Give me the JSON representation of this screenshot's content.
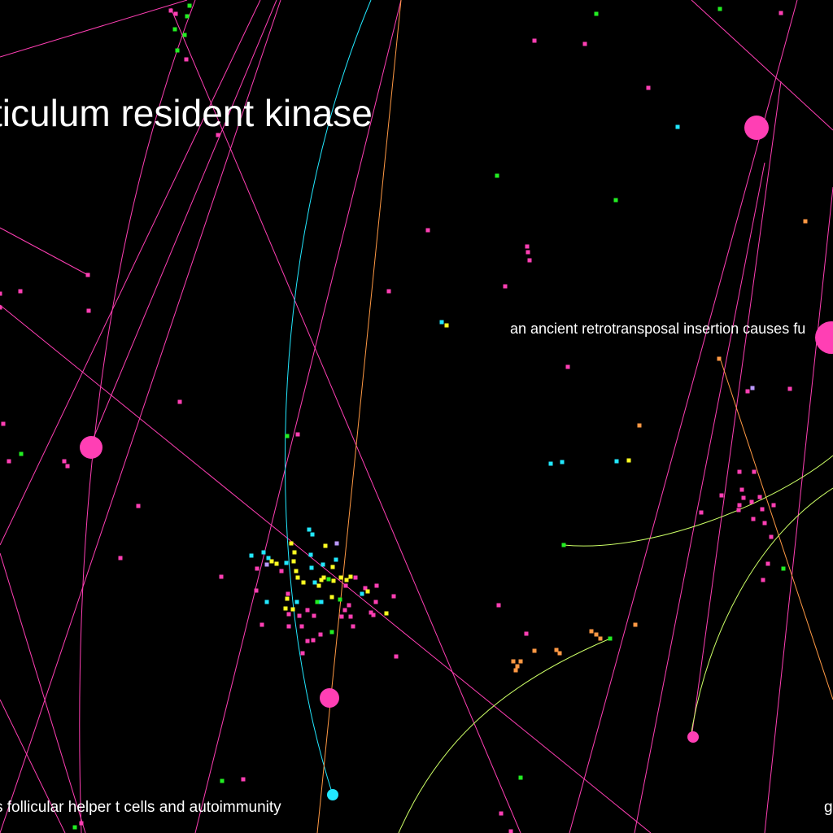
{
  "labels": {
    "title_fragment": "ticulum resident kinase",
    "mid_label": "an ancient retrotransposal insertion causes fu",
    "bottom_label": "s follicular helper t cells and autoimmunity",
    "corner_fragment": "g"
  },
  "colors": {
    "background": "#000000",
    "pink": "#ff3fb4",
    "cyan": "#22e8ff",
    "yellow": "#ffff22",
    "green": "#22ee22",
    "orange": "#ff9944",
    "lavender": "#bb99ff",
    "lime": "#ccff66"
  }
}
